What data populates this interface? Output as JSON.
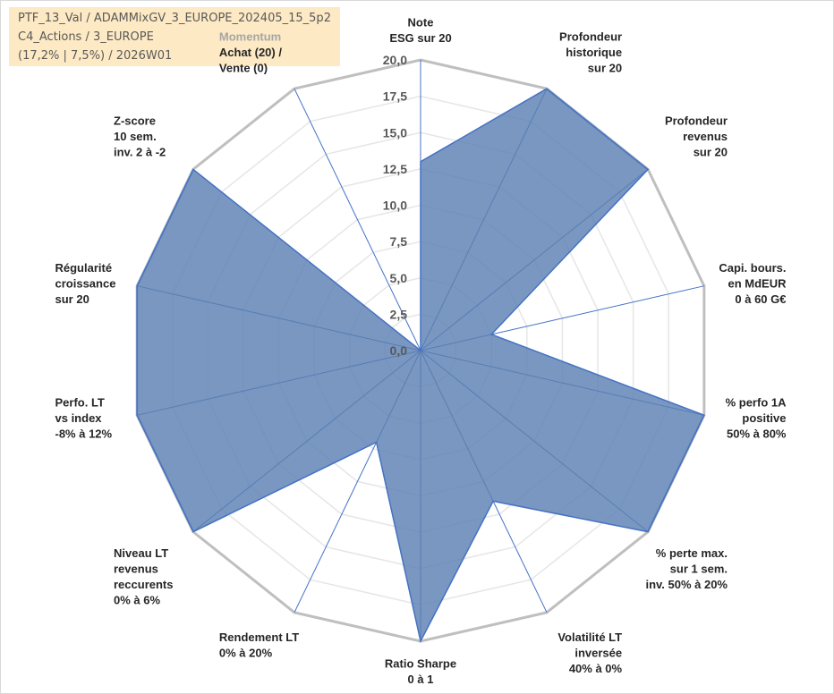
{
  "info_box": {
    "line1": "PTF_13_Val / ADAMMixGV_3_EUROPE_202405_15_5p2",
    "line2": "C4_Actions / 3_EUROPE",
    "line3": "(17,2% | 7,5%) / 2026W01"
  },
  "colors": {
    "fill": "#5b80b2",
    "fill_opacity": 0.82,
    "stroke": "#4472c4",
    "grid_outer": "#bfbfbf",
    "grid_inner": "#e6e6e6",
    "spoke": "#4472c4",
    "info_bg": "#fde9c4"
  },
  "chart_data": {
    "type": "radar",
    "rmin": 0,
    "rmax": 20,
    "tick_labels": [
      "0,0",
      "2,5",
      "5,0",
      "7,5",
      "10,0",
      "12,5",
      "15,0",
      "17,5",
      "20,0"
    ],
    "grid": true,
    "axes": [
      {
        "lines": [
          "Note",
          "ESG sur 20"
        ],
        "value": 13.0
      },
      {
        "lines": [
          "Profondeur",
          "historique",
          "sur 20"
        ],
        "value": 20.0
      },
      {
        "lines": [
          "Profondeur",
          "revenus",
          "sur 20"
        ],
        "value": 20.0
      },
      {
        "lines": [
          "Capi. bours.",
          "en MdEUR",
          "0 à 60 G€"
        ],
        "value": 5.0
      },
      {
        "lines": [
          "% perfo 1A",
          "positive",
          "50% à 80%"
        ],
        "value": 20.0
      },
      {
        "lines": [
          "% perte max.",
          "sur 1 sem.",
          "inv. 50% à 20%"
        ],
        "value": 20.0
      },
      {
        "lines": [
          "Volatilité LT",
          "inversée",
          "40% à 0%"
        ],
        "value": 11.5
      },
      {
        "lines": [
          "Ratio Sharpe",
          "0 à 1"
        ],
        "value": 20.0
      },
      {
        "lines": [
          "Rendement LT",
          "0% à 20%"
        ],
        "value": 7.0
      },
      {
        "lines": [
          "Niveau LT",
          "revenus",
          "reccurents",
          "0% à 6%"
        ],
        "value": 20.0
      },
      {
        "lines": [
          "Perfo. LT",
          "vs index",
          "-8% à 12%"
        ],
        "value": 20.0
      },
      {
        "lines": [
          "Régularité",
          "croissance",
          "sur 20"
        ],
        "value": 20.0
      },
      {
        "lines": [
          "Z-score",
          "10 sem.",
          "inv. 2 à -2"
        ],
        "value": 20.0
      },
      {
        "lines": [
          "Momentum",
          "Achat (20) /",
          "Vente (0)"
        ],
        "value": 0.0,
        "first_line_gray": true
      }
    ]
  }
}
